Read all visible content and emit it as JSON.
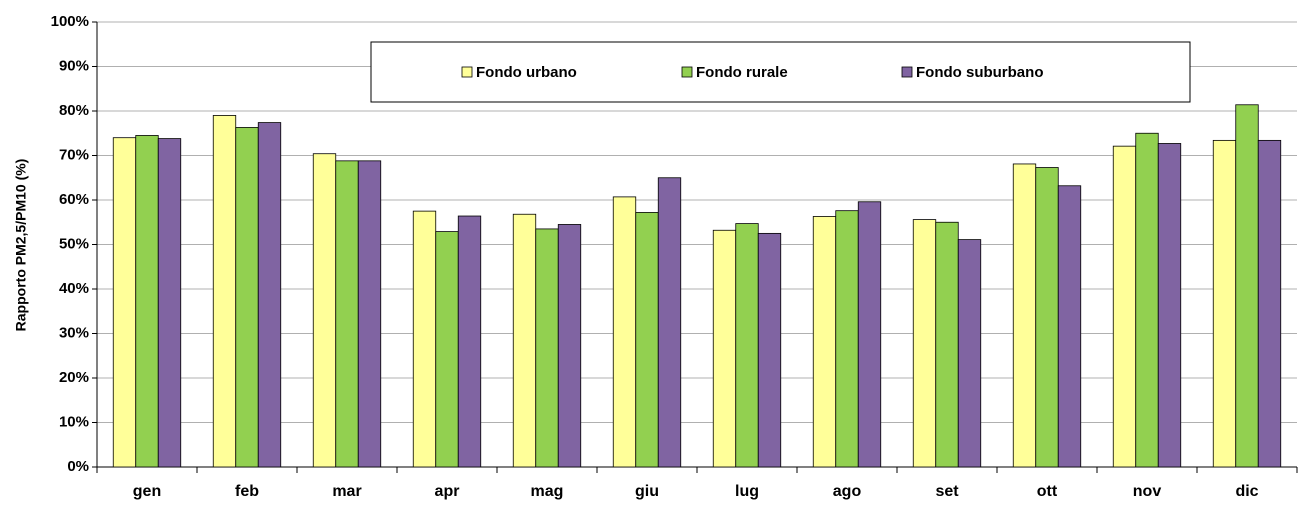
{
  "chart_data": {
    "type": "bar",
    "y_label": "Rapporto PM2,5/PM10 (%)",
    "categories": [
      "gen",
      "feb",
      "mar",
      "apr",
      "mag",
      "giu",
      "lug",
      "ago",
      "set",
      "ott",
      "nov",
      "dic"
    ],
    "series": [
      {
        "name": "Fondo urbano",
        "color": "#ffff99",
        "values": [
          74,
          79,
          70.4,
          57.5,
          56.8,
          60.7,
          53.2,
          56.3,
          55.6,
          68.1,
          72.1,
          73.4
        ]
      },
      {
        "name": "Fondo rurale",
        "color": "#92d050",
        "values": [
          74.5,
          76.3,
          68.8,
          52.9,
          53.5,
          57.2,
          54.7,
          57.6,
          55,
          67.3,
          75,
          81.4
        ]
      },
      {
        "name": "Fondo suburbano",
        "color": "#8064a2",
        "values": [
          73.8,
          77.4,
          68.8,
          56.4,
          54.5,
          65,
          52.5,
          59.6,
          51.1,
          63.2,
          72.7,
          73.4
        ]
      }
    ],
    "ylim": [
      0,
      100
    ],
    "yticks": [
      {
        "value": 0,
        "label": "0%"
      },
      {
        "value": 10,
        "label": "10%"
      },
      {
        "value": 20,
        "label": "20%"
      },
      {
        "value": 30,
        "label": "30%"
      },
      {
        "value": 40,
        "label": "40%"
      },
      {
        "value": 50,
        "label": "50%"
      },
      {
        "value": 60,
        "label": "60%"
      },
      {
        "value": 70,
        "label": "70%"
      },
      {
        "value": 80,
        "label": "80%"
      },
      {
        "value": 90,
        "label": "90%"
      },
      {
        "value": 100,
        "label": "100%"
      }
    ],
    "grid": true,
    "legend": "top"
  }
}
